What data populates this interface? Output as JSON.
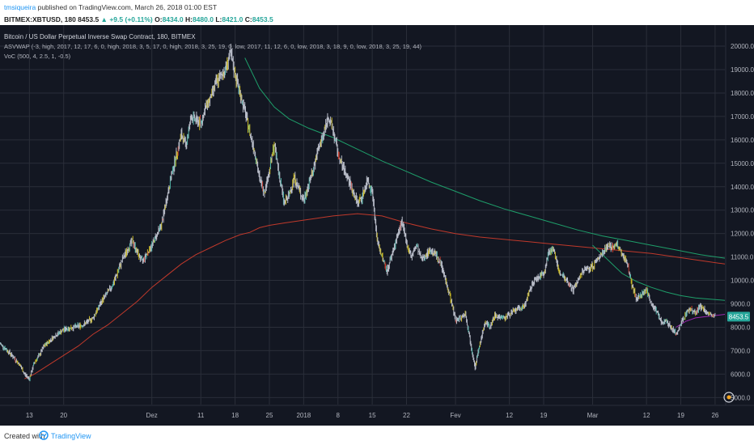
{
  "header": {
    "author": "tmsiqueira",
    "published_text": "published on TradingView.com, March 26, 2018 01:00 EST"
  },
  "quote": {
    "symbol": "BITMEX:XBTUSD, 180",
    "last": "8453.5",
    "change": "+9.5 (+0.11%)",
    "open_label": "O:",
    "open": "8434.0",
    "high_label": "H:",
    "high": "8480.0",
    "low_label": "L:",
    "low": "8421.0",
    "close_label": "C:",
    "close": "8453.5"
  },
  "legend": {
    "title": "Bitcoin / US Dollar Perpetual Inverse Swap Contract, 180, BITMEX",
    "indicator1": "ASVWAP (-3, high, 2017, 12, 17, 6, 0, high, 2018, 3, 5, 17, 0, high, 2018, 3, 25, 19, 0, low, 2017, 11, 12, 6, 0, low, 2018, 3, 18, 9, 0, low, 2018, 3, 25, 19, 44)",
    "indicator2": "VoC (500, 4, 2.5, 1, -0.5)"
  },
  "footer": {
    "created_with": "Created with",
    "brand": "TradingView"
  },
  "colors": {
    "background": "#131722",
    "grid": "#2a2e39",
    "axis_text": "#b2b5be",
    "price_candle": "#b8bcc8",
    "yellow_candle": "#c9b824",
    "teal_candle": "#4fb5a8",
    "red_candle": "#c0392b",
    "vwap_green": "#1e9e6a",
    "vwap_red": "#c0392b",
    "vwap_purple": "#9c27b0",
    "price_tag": "#26a69a"
  },
  "chart_data": {
    "type": "line",
    "title": "Bitcoin / US Dollar Perpetual Inverse Swap Contract, 180, BITMEX",
    "y_ticks": [
      5000.0,
      6000.0,
      7000.0,
      8000.0,
      9000.0,
      10000.0,
      11000.0,
      12000.0,
      13000.0,
      14000.0,
      15000.0,
      16000.0,
      17000.0,
      18000.0,
      19000.0,
      20000.0
    ],
    "ylim": [
      4700,
      20900
    ],
    "x_ticks": [
      {
        "label": "13",
        "t": 13
      },
      {
        "label": "20",
        "t": 20
      },
      {
        "label": "Dez",
        "t": 38
      },
      {
        "label": "11",
        "t": 48
      },
      {
        "label": "18",
        "t": 55
      },
      {
        "label": "25",
        "t": 62
      },
      {
        "label": "2018",
        "t": 69
      },
      {
        "label": "8",
        "t": 76
      },
      {
        "label": "15",
        "t": 83
      },
      {
        "label": "22",
        "t": 90
      },
      {
        "label": "Fev",
        "t": 100
      },
      {
        "label": "12",
        "t": 111
      },
      {
        "label": "19",
        "t": 118
      },
      {
        "label": "Mar",
        "t": 128
      },
      {
        "label": "12",
        "t": 139
      },
      {
        "label": "19",
        "t": 146
      },
      {
        "label": "26",
        "t": 153
      }
    ],
    "xlim": [
      7,
      155
    ],
    "last_price": "8453.5",
    "series": [
      {
        "key": "price",
        "x": [
          7,
          9,
          11,
          12,
          13,
          14,
          15,
          16,
          18,
          20,
          22,
          24,
          26,
          28,
          30,
          32,
          34,
          35,
          36,
          38,
          40,
          42,
          44,
          45,
          46,
          48,
          49,
          50,
          51,
          53,
          54,
          55,
          56,
          57,
          58,
          59,
          60,
          61,
          62,
          63,
          64,
          65,
          66,
          67,
          68,
          69,
          70,
          71,
          72,
          73,
          74,
          75,
          76,
          77,
          78,
          79,
          80,
          81,
          82,
          83,
          84,
          85,
          86,
          87,
          88,
          89,
          90,
          91,
          92,
          93,
          95,
          96,
          97,
          98,
          99,
          100,
          101,
          102,
          103,
          104,
          105,
          106,
          107,
          108,
          110,
          112,
          114,
          116,
          118,
          119,
          120,
          121,
          122,
          123,
          124,
          126,
          128,
          130,
          131,
          132,
          133,
          134,
          135,
          136,
          137,
          138,
          139,
          140,
          141,
          142,
          143,
          144,
          145,
          146,
          147,
          148,
          149,
          150,
          151,
          152,
          153
        ],
        "y": [
          7300,
          6900,
          6400,
          6000,
          5800,
          6500,
          6800,
          7200,
          7600,
          7900,
          8000,
          8100,
          8400,
          9200,
          9800,
          10900,
          11700,
          11200,
          10800,
          11500,
          12400,
          14500,
          16200,
          15800,
          17000,
          16700,
          17400,
          17800,
          18400,
          19000,
          19700,
          18800,
          18000,
          17200,
          16300,
          15500,
          14300,
          13800,
          14700,
          15800,
          14500,
          13300,
          13600,
          14400,
          13900,
          13400,
          14100,
          14800,
          15600,
          16200,
          17000,
          16400,
          15400,
          14800,
          14400,
          13800,
          13300,
          13600,
          14300,
          13800,
          11700,
          11000,
          10400,
          11100,
          11800,
          12500,
          11600,
          11000,
          11500,
          10900,
          11300,
          11100,
          10700,
          10000,
          9200,
          8300,
          8400,
          8600,
          7400,
          6300,
          7300,
          8200,
          8000,
          8500,
          8400,
          8700,
          8900,
          10000,
          10300,
          11200,
          11400,
          10400,
          10200,
          9900,
          9600,
          10400,
          10600,
          11200,
          11500,
          11400,
          11500,
          11100,
          10800,
          9800,
          9200,
          9400,
          9600,
          9000,
          8700,
          8200,
          8300,
          8000,
          7700,
          8100,
          8600,
          8800,
          8600,
          8900,
          8700,
          8500,
          8450
        ]
      },
      {
        "key": "vwap_high_dec17",
        "x": [
          57,
          60,
          63,
          66,
          70,
          75,
          80,
          85,
          90,
          95,
          100,
          105,
          110,
          115,
          120,
          125,
          130,
          135,
          140,
          145,
          150,
          155
        ],
        "y": [
          19500,
          18200,
          17400,
          16900,
          16500,
          16100,
          15600,
          15100,
          14650,
          14200,
          13800,
          13400,
          13050,
          12750,
          12450,
          12150,
          11900,
          11700,
          11500,
          11300,
          11100,
          10950
        ]
      },
      {
        "key": "vwap_low_nov17",
        "x": [
          12,
          14,
          17,
          20,
          23,
          26,
          29,
          32,
          35,
          38,
          41,
          44,
          47,
          50,
          53,
          56,
          58,
          60,
          62,
          65,
          70,
          75,
          80,
          85,
          90,
          95,
          100,
          105,
          110,
          115,
          120,
          125,
          130,
          135,
          140,
          145,
          150,
          155
        ],
        "y": [
          5800,
          6000,
          6400,
          6800,
          7200,
          7700,
          8100,
          8600,
          9100,
          9700,
          10200,
          10700,
          11100,
          11400,
          11700,
          11950,
          12050,
          12250,
          12350,
          12450,
          12600,
          12750,
          12850,
          12750,
          12450,
          12200,
          12000,
          11850,
          11750,
          11650,
          11550,
          11450,
          11350,
          11250,
          11150,
          11000,
          10850,
          10700
        ]
      },
      {
        "key": "vwap_high_mar5",
        "x": [
          128,
          131,
          134,
          137,
          140,
          143,
          146,
          149,
          152,
          155
        ],
        "y": [
          11500,
          10900,
          10300,
          9950,
          9700,
          9500,
          9350,
          9250,
          9200,
          9150
        ]
      },
      {
        "key": "vwap_low_mar18",
        "x": [
          145,
          147,
          149,
          151,
          153,
          155
        ],
        "y": [
          8000,
          8250,
          8400,
          8450,
          8500,
          8550
        ]
      }
    ]
  }
}
